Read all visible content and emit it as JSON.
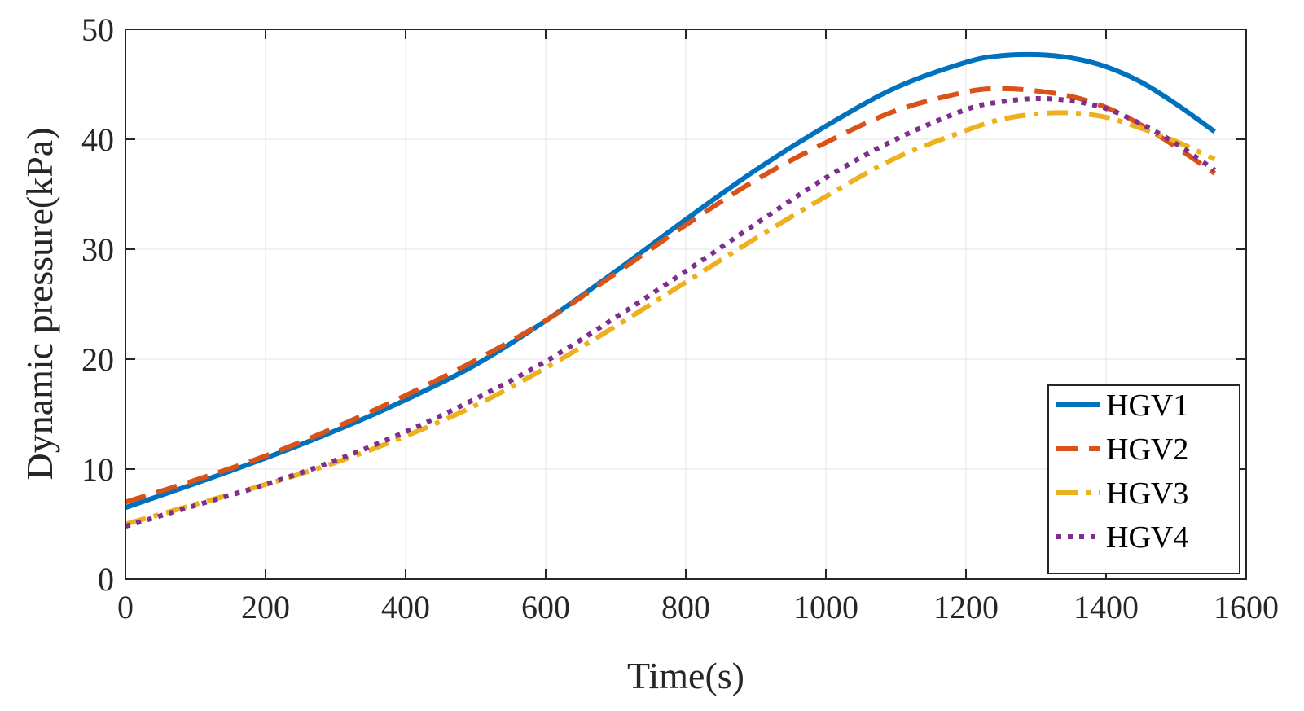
{
  "chart_data": {
    "type": "line",
    "title": "",
    "xlabel": "Time(s)",
    "ylabel": "Dynamic pressure(kPa)",
    "xlim": [
      0,
      1600
    ],
    "ylim": [
      0,
      50
    ],
    "xticks": [
      "0",
      "200",
      "400",
      "600",
      "800",
      "1000",
      "1200",
      "1400",
      "1600"
    ],
    "yticks": [
      "0",
      "10",
      "20",
      "30",
      "40",
      "50"
    ],
    "grid": true,
    "legend_position": "bottom-right",
    "series": [
      {
        "name": "HGV1",
        "color": "#0072BD",
        "style": "solid",
        "x": [
          0,
          100,
          200,
          300,
          400,
          500,
          600,
          700,
          800,
          900,
          1000,
          1100,
          1200,
          1250,
          1300,
          1350,
          1400,
          1450,
          1500,
          1555
        ],
        "y": [
          6.5,
          8.7,
          11.0,
          13.5,
          16.3,
          19.5,
          23.5,
          28.0,
          32.7,
          37.2,
          41.2,
          44.7,
          47.0,
          47.6,
          47.7,
          47.4,
          46.6,
          45.2,
          43.2,
          40.7
        ]
      },
      {
        "name": "HGV2",
        "color": "#D95319",
        "style": "dashed",
        "x": [
          0,
          100,
          200,
          300,
          400,
          500,
          600,
          700,
          800,
          900,
          1000,
          1100,
          1200,
          1250,
          1300,
          1350,
          1400,
          1450,
          1500,
          1555
        ],
        "y": [
          7.0,
          9.0,
          11.2,
          13.8,
          16.7,
          19.9,
          23.5,
          27.8,
          32.2,
          36.3,
          39.7,
          42.6,
          44.3,
          44.6,
          44.4,
          43.9,
          42.9,
          41.3,
          39.3,
          36.9
        ]
      },
      {
        "name": "HGV3",
        "color": "#EDB120",
        "style": "dashdot",
        "x": [
          0,
          100,
          200,
          300,
          400,
          500,
          600,
          700,
          800,
          900,
          1000,
          1100,
          1200,
          1250,
          1300,
          1350,
          1400,
          1450,
          1500,
          1555
        ],
        "y": [
          5.0,
          6.8,
          8.6,
          10.6,
          13.0,
          15.8,
          19.2,
          23.0,
          27.0,
          31.0,
          34.8,
          38.3,
          40.8,
          41.8,
          42.3,
          42.4,
          42.0,
          41.0,
          39.8,
          38.2
        ]
      },
      {
        "name": "HGV4",
        "color": "#7E2F8E",
        "style": "dotted",
        "x": [
          0,
          100,
          200,
          300,
          400,
          500,
          600,
          700,
          800,
          900,
          1000,
          1100,
          1200,
          1250,
          1300,
          1350,
          1400,
          1450,
          1500,
          1555
        ],
        "y": [
          4.8,
          6.7,
          8.6,
          10.8,
          13.4,
          16.4,
          19.8,
          23.8,
          28.0,
          32.3,
          36.5,
          40.0,
          42.7,
          43.4,
          43.7,
          43.5,
          42.8,
          41.4,
          39.6,
          37.2
        ]
      }
    ]
  }
}
